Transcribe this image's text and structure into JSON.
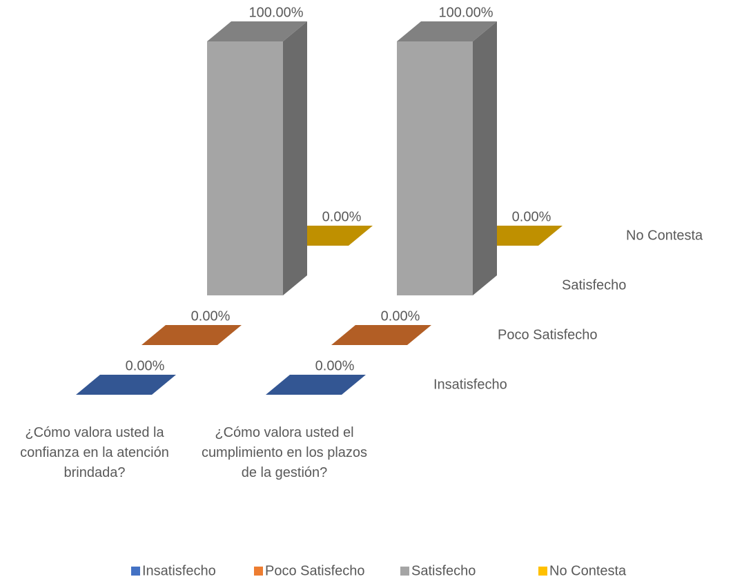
{
  "chart_data": {
    "type": "bar3d",
    "categories": [
      "¿Cómo valora usted la confianza en la atención brindada?",
      "¿Cómo valora usted el cumplimiento en los plazos de la gestión?"
    ],
    "series": [
      {
        "name": "Insatisfecho",
        "color": "#4472c4",
        "values": [
          0,
          0
        ],
        "value_labels": [
          "0.00%",
          "0.00%"
        ]
      },
      {
        "name": "Poco Satisfecho",
        "color": "#ed7d31",
        "values": [
          0,
          0
        ],
        "value_labels": [
          "0.00%",
          "0.00%"
        ]
      },
      {
        "name": "Satisfecho",
        "color": "#a5a5a5",
        "values": [
          100,
          100
        ],
        "value_labels": [
          "100.00%",
          "100.00%"
        ]
      },
      {
        "name": "No Contesta",
        "color": "#ffc000",
        "values": [
          0,
          0
        ],
        "value_labels": [
          "0.00%",
          "0.00%"
        ]
      }
    ],
    "ylim": [
      0,
      100
    ],
    "legend": "bottom"
  }
}
